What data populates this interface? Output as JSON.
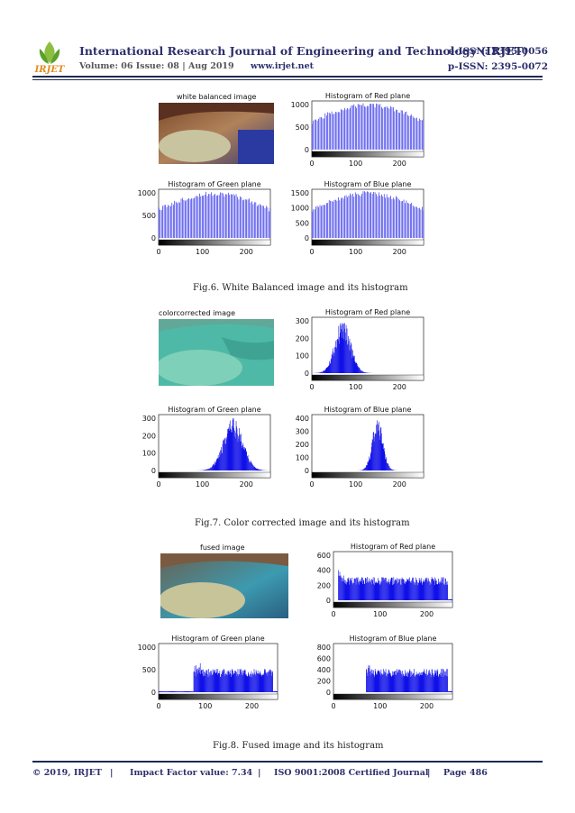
{
  "header": {
    "journal": "International Research Journal of Engineering and Technology (IRJET)",
    "volume": "Volume: 06 Issue: 08 | Aug 2019",
    "url": "www.irjet.net",
    "eissn": "e-ISSN: 2395-0056",
    "pissn": "p-ISSN: 2395-0072",
    "logo_text": "IRJET"
  },
  "colors": {
    "header_blue": "#2c2f6b",
    "histogram": "#1010e8"
  },
  "figures": [
    {
      "caption": "Fig.6. White Balanced image and its histogram",
      "image_title": "white balanced image",
      "panels": [
        {
          "title": "Histogram of Red plane",
          "yticks": [
            "1000",
            "500",
            "0"
          ],
          "xticks": [
            "0",
            "100",
            "200"
          ]
        },
        {
          "title": "Histogram of Green plane",
          "yticks": [
            "1000",
            "500",
            "0"
          ],
          "xticks": [
            "0",
            "100",
            "200"
          ]
        },
        {
          "title": "Histogram of Blue plane",
          "yticks": [
            "1500",
            "1000",
            "500",
            "0"
          ],
          "xticks": [
            "0",
            "100",
            "200"
          ]
        }
      ]
    },
    {
      "caption": "Fig.7. Color corrected image and its histogram",
      "image_title": "colorcorrected image",
      "panels": [
        {
          "title": "Histogram of Red plane",
          "yticks": [
            "300",
            "200",
            "100",
            "0"
          ],
          "xticks": [
            "0",
            "100",
            "200"
          ]
        },
        {
          "title": "Histogram of Green plane",
          "yticks": [
            "300",
            "200",
            "100",
            "0"
          ],
          "xticks": [
            "0",
            "100",
            "200"
          ]
        },
        {
          "title": "Histogram of Blue plane",
          "yticks": [
            "400",
            "300",
            "200",
            "100",
            "0"
          ],
          "xticks": [
            "0",
            "100",
            "200"
          ]
        }
      ]
    },
    {
      "caption": "Fig.8. Fused image and its histogram",
      "image_title": "fused image",
      "panels": [
        {
          "title": "Histogram of Red plane",
          "yticks": [
            "600",
            "400",
            "200",
            "0"
          ],
          "xticks": [
            "0",
            "100",
            "200"
          ]
        },
        {
          "title": "Histogram of Green plane",
          "yticks": [
            "1000",
            "500",
            "0"
          ],
          "xticks": [
            "0",
            "100",
            "200"
          ]
        },
        {
          "title": "Histogram of Blue plane",
          "yticks": [
            "800",
            "600",
            "400",
            "200",
            "0"
          ],
          "xticks": [
            "0",
            "100",
            "200"
          ]
        }
      ]
    }
  ],
  "footer": {
    "copyright": "© 2019, IRJET",
    "sep": "|",
    "impact": "Impact Factor value: 7.34",
    "iso": "ISO 9001:2008 Certified Journal",
    "page": "Page 486"
  }
}
